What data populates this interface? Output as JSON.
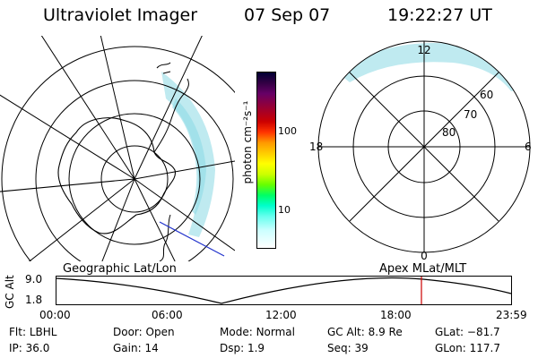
{
  "header": {
    "title": "Ultraviolet Imager",
    "date": "07 Sep 07",
    "time": "19:22:27 UT"
  },
  "colorbar": {
    "unit_label": "photon cm⁻²s⁻¹",
    "ticks": [
      "100",
      "10"
    ],
    "colors": [
      "#000033",
      "#330044",
      "#660066",
      "#990033",
      "#cc0000",
      "#ff3300",
      "#ff9900",
      "#ffcc00",
      "#ffff00",
      "#ccff00",
      "#66ff00",
      "#00ff66",
      "#00ffcc",
      "#66ffee",
      "#ccffff",
      "#ffffff"
    ]
  },
  "geo_map": {
    "caption": "Geographic Lat/Lon"
  },
  "polar_map": {
    "caption": "Apex  MLat/MLT",
    "labels": {
      "top": "12",
      "bottom": "0",
      "left": "18",
      "right": "6"
    },
    "ring_labels": [
      "60",
      "70",
      "80"
    ]
  },
  "altitude_plot": {
    "ylabel": "GC Alt",
    "yticks": [
      "9.0",
      "1.8"
    ],
    "xticks": [
      "00:00",
      "06:00",
      "12:00",
      "18:00",
      "23:59"
    ],
    "marker_color": "#cc0000"
  },
  "status": {
    "row1": [
      {
        "key": "Flt:",
        "val": "LBHL"
      },
      {
        "key": "Door:",
        "val": "Open"
      },
      {
        "key": "Mode:",
        "val": "Normal"
      },
      {
        "key": "GC Alt:",
        "val": "8.9 Re"
      },
      {
        "key": "GLat:",
        "val": "−81.7"
      }
    ],
    "row2": [
      {
        "key": "IP:",
        "val": "36.0"
      },
      {
        "key": "Gain:",
        "val": "14"
      },
      {
        "key": "Dsp:",
        "val": "1.9"
      },
      {
        "key": "Seq:",
        "val": "39"
      },
      {
        "key": "GLon:",
        "val": "117.7"
      }
    ]
  }
}
